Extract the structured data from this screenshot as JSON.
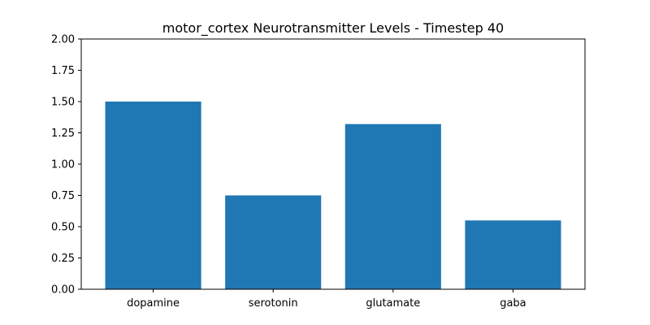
{
  "chart_data": {
    "type": "bar",
    "title": "motor_cortex Neurotransmitter Levels - Timestep 40",
    "xlabel": "",
    "ylabel": "",
    "categories": [
      "dopamine",
      "serotonin",
      "glutamate",
      "gaba"
    ],
    "values": [
      1.5,
      0.75,
      1.32,
      0.55
    ],
    "ylim": [
      0,
      2
    ],
    "yticks": [
      0,
      0.25,
      0.5,
      0.75,
      1,
      1.25,
      1.5,
      1.75,
      2
    ],
    "ytick_labels": [
      "0.00",
      "0.25",
      "0.50",
      "0.75",
      "1.00",
      "1.25",
      "1.50",
      "1.75",
      "2.00"
    ],
    "bar_color": "#1f77b4",
    "grid": false,
    "legend": "none"
  }
}
